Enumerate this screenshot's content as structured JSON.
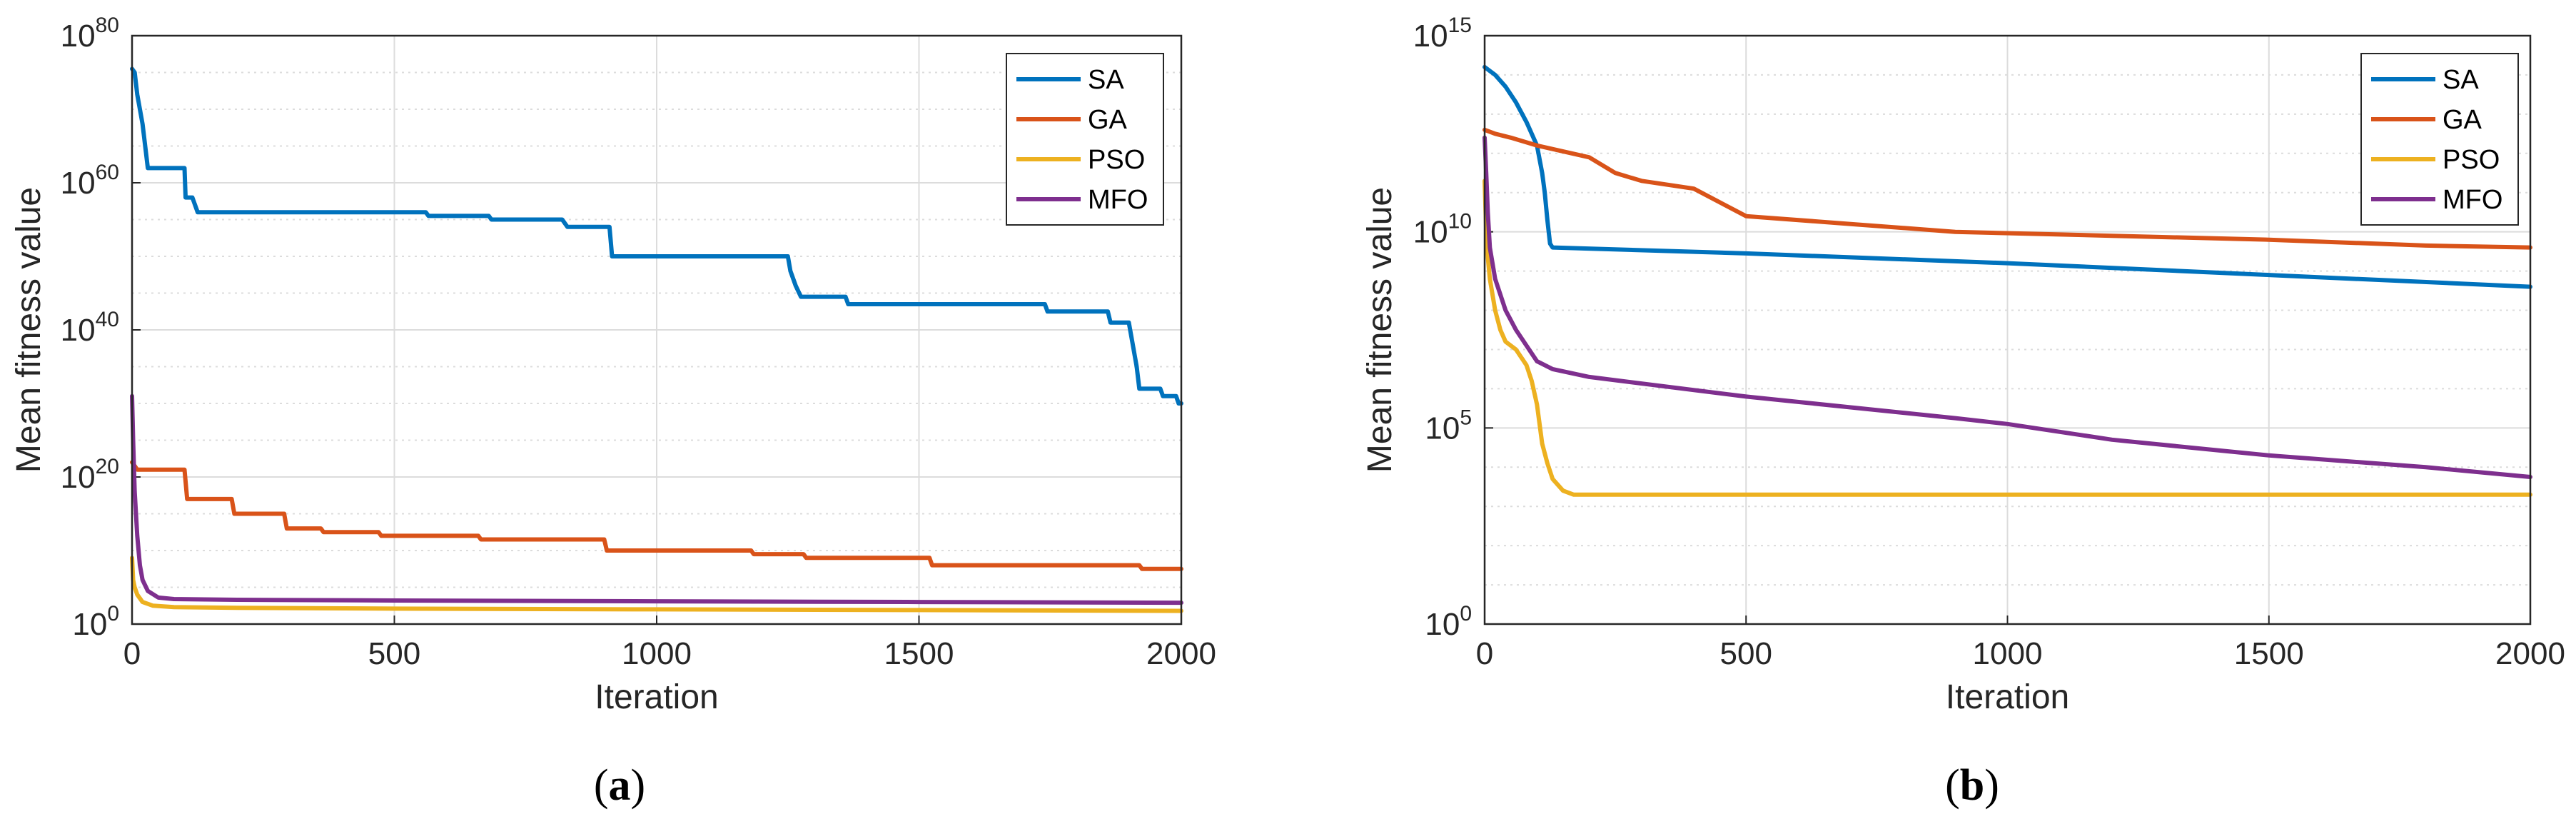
{
  "colors": {
    "SA": "#0072BD",
    "GA": "#D95319",
    "PSO": "#EDB120",
    "MFO": "#7E2F8E",
    "grid": "#dcdcdc",
    "axis": "#262626"
  },
  "chart_data": [
    {
      "type": "line",
      "panel_label": "a",
      "xlabel": "Iteration",
      "ylabel": "Mean fitness value",
      "xlim": [
        0,
        2000
      ],
      "xticks": [
        "0",
        "500",
        "1000",
        "1500",
        "2000"
      ],
      "yscale": "log",
      "ylim_exponent": [
        0,
        80
      ],
      "yticks": [
        {
          "base": "10",
          "exp": "0"
        },
        {
          "base": "10",
          "exp": "20"
        },
        {
          "base": "10",
          "exp": "40"
        },
        {
          "base": "10",
          "exp": "60"
        },
        {
          "base": "10",
          "exp": "80"
        }
      ],
      "grid": true,
      "legend_position": "top-right",
      "series": [
        {
          "name": "SA",
          "step": true,
          "log10_points": [
            [
              0,
              75.5
            ],
            [
              5,
              75
            ],
            [
              10,
              72
            ],
            [
              15,
              70
            ],
            [
              20,
              68
            ],
            [
              30,
              62
            ],
            [
              100,
              62
            ],
            [
              102,
              58
            ],
            [
              115,
              58
            ],
            [
              125,
              56
            ],
            [
              560,
              56
            ],
            [
              565,
              55.5
            ],
            [
              680,
              55.5
            ],
            [
              685,
              55
            ],
            [
              820,
              55
            ],
            [
              830,
              54
            ],
            [
              910,
              54
            ],
            [
              915,
              50
            ],
            [
              1250,
              50
            ],
            [
              1255,
              48
            ],
            [
              1265,
              46
            ],
            [
              1275,
              44.5
            ],
            [
              1360,
              44.5
            ],
            [
              1365,
              43.5
            ],
            [
              1740,
              43.5
            ],
            [
              1745,
              42.5
            ],
            [
              1860,
              42.5
            ],
            [
              1865,
              41
            ],
            [
              1900,
              41
            ],
            [
              1905,
              39
            ],
            [
              1915,
              35
            ],
            [
              1920,
              32
            ],
            [
              1960,
              32
            ],
            [
              1965,
              31
            ],
            [
              1990,
              31
            ],
            [
              1995,
              30
            ],
            [
              2000,
              30
            ]
          ]
        },
        {
          "name": "GA",
          "step": true,
          "log10_points": [
            [
              0,
              22
            ],
            [
              5,
              21.5
            ],
            [
              10,
              21
            ],
            [
              100,
              21
            ],
            [
              105,
              17
            ],
            [
              190,
              17
            ],
            [
              195,
              15
            ],
            [
              290,
              15
            ],
            [
              295,
              13
            ],
            [
              360,
              13
            ],
            [
              365,
              12.5
            ],
            [
              470,
              12.5
            ],
            [
              475,
              12
            ],
            [
              660,
              12
            ],
            [
              665,
              11.5
            ],
            [
              900,
              11.5
            ],
            [
              905,
              10
            ],
            [
              1180,
              10
            ],
            [
              1185,
              9.5
            ],
            [
              1280,
              9.5
            ],
            [
              1285,
              9
            ],
            [
              1520,
              9
            ],
            [
              1525,
              8
            ],
            [
              1920,
              8
            ],
            [
              1925,
              7.5
            ],
            [
              2000,
              7.5
            ]
          ]
        },
        {
          "name": "PSO",
          "step": false,
          "log10_points": [
            [
              0,
              9
            ],
            [
              2,
              6
            ],
            [
              5,
              5
            ],
            [
              10,
              4
            ],
            [
              20,
              3
            ],
            [
              40,
              2.5
            ],
            [
              80,
              2.3
            ],
            [
              200,
              2.2
            ],
            [
              500,
              2.1
            ],
            [
              1000,
              2
            ],
            [
              1500,
              1.9
            ],
            [
              2000,
              1.8
            ]
          ]
        },
        {
          "name": "MFO",
          "step": false,
          "log10_points": [
            [
              0,
              31
            ],
            [
              2,
              25
            ],
            [
              5,
              18
            ],
            [
              10,
              12
            ],
            [
              15,
              8
            ],
            [
              20,
              6
            ],
            [
              30,
              4.5
            ],
            [
              50,
              3.6
            ],
            [
              80,
              3.4
            ],
            [
              200,
              3.3
            ],
            [
              500,
              3.2
            ],
            [
              1000,
              3.1
            ],
            [
              1500,
              3
            ],
            [
              2000,
              2.9
            ]
          ]
        }
      ]
    },
    {
      "type": "line",
      "panel_label": "b",
      "xlabel": "Iteration",
      "ylabel": "Mean fitness value",
      "xlim": [
        0,
        2000
      ],
      "xticks": [
        "0",
        "500",
        "1000",
        "1500",
        "2000"
      ],
      "yscale": "log",
      "ylim_exponent": [
        0,
        15
      ],
      "yticks": [
        {
          "base": "10",
          "exp": "0"
        },
        {
          "base": "10",
          "exp": "5"
        },
        {
          "base": "10",
          "exp": "10"
        },
        {
          "base": "10",
          "exp": "15"
        }
      ],
      "grid": true,
      "legend_position": "top-right",
      "series": [
        {
          "name": "SA",
          "step": false,
          "log10_points": [
            [
              0,
              14.2
            ],
            [
              10,
              14.1
            ],
            [
              20,
              14
            ],
            [
              40,
              13.7
            ],
            [
              60,
              13.3
            ],
            [
              80,
              12.8
            ],
            [
              100,
              12.2
            ],
            [
              110,
              11.5
            ],
            [
              115,
              11
            ],
            [
              120,
              10.3
            ],
            [
              125,
              9.7
            ],
            [
              130,
              9.6
            ],
            [
              500,
              9.45
            ],
            [
              1000,
              9.2
            ],
            [
              1500,
              8.9
            ],
            [
              2000,
              8.6
            ]
          ]
        },
        {
          "name": "GA",
          "step": false,
          "log10_points": [
            [
              0,
              12.6
            ],
            [
              20,
              12.5
            ],
            [
              50,
              12.4
            ],
            [
              100,
              12.2
            ],
            [
              200,
              11.9
            ],
            [
              250,
              11.5
            ],
            [
              300,
              11.3
            ],
            [
              400,
              11.1
            ],
            [
              500,
              10.4
            ],
            [
              700,
              10.2
            ],
            [
              900,
              10
            ],
            [
              1200,
              9.9
            ],
            [
              1500,
              9.8
            ],
            [
              1800,
              9.65
            ],
            [
              2000,
              9.6
            ]
          ]
        },
        {
          "name": "PSO",
          "step": false,
          "log10_points": [
            [
              0,
              11.3
            ],
            [
              3,
              10
            ],
            [
              5,
              9.5
            ],
            [
              10,
              8.8
            ],
            [
              20,
              8
            ],
            [
              30,
              7.5
            ],
            [
              40,
              7.2
            ],
            [
              60,
              7
            ],
            [
              80,
              6.6
            ],
            [
              90,
              6.2
            ],
            [
              100,
              5.6
            ],
            [
              110,
              4.6
            ],
            [
              120,
              4.1
            ],
            [
              130,
              3.7
            ],
            [
              150,
              3.4
            ],
            [
              170,
              3.3
            ],
            [
              200,
              3.3
            ],
            [
              2000,
              3.3
            ]
          ]
        },
        {
          "name": "MFO",
          "step": false,
          "log10_points": [
            [
              0,
              12.4
            ],
            [
              3,
              11.5
            ],
            [
              6,
              10.5
            ],
            [
              10,
              9.6
            ],
            [
              20,
              8.8
            ],
            [
              40,
              8
            ],
            [
              60,
              7.5
            ],
            [
              80,
              7.1
            ],
            [
              100,
              6.7
            ],
            [
              130,
              6.5
            ],
            [
              200,
              6.3
            ],
            [
              500,
              5.8
            ],
            [
              900,
              5.25
            ],
            [
              1000,
              5.1
            ],
            [
              1200,
              4.7
            ],
            [
              1500,
              4.3
            ],
            [
              1800,
              4
            ],
            [
              2000,
              3.75
            ]
          ]
        }
      ]
    }
  ]
}
